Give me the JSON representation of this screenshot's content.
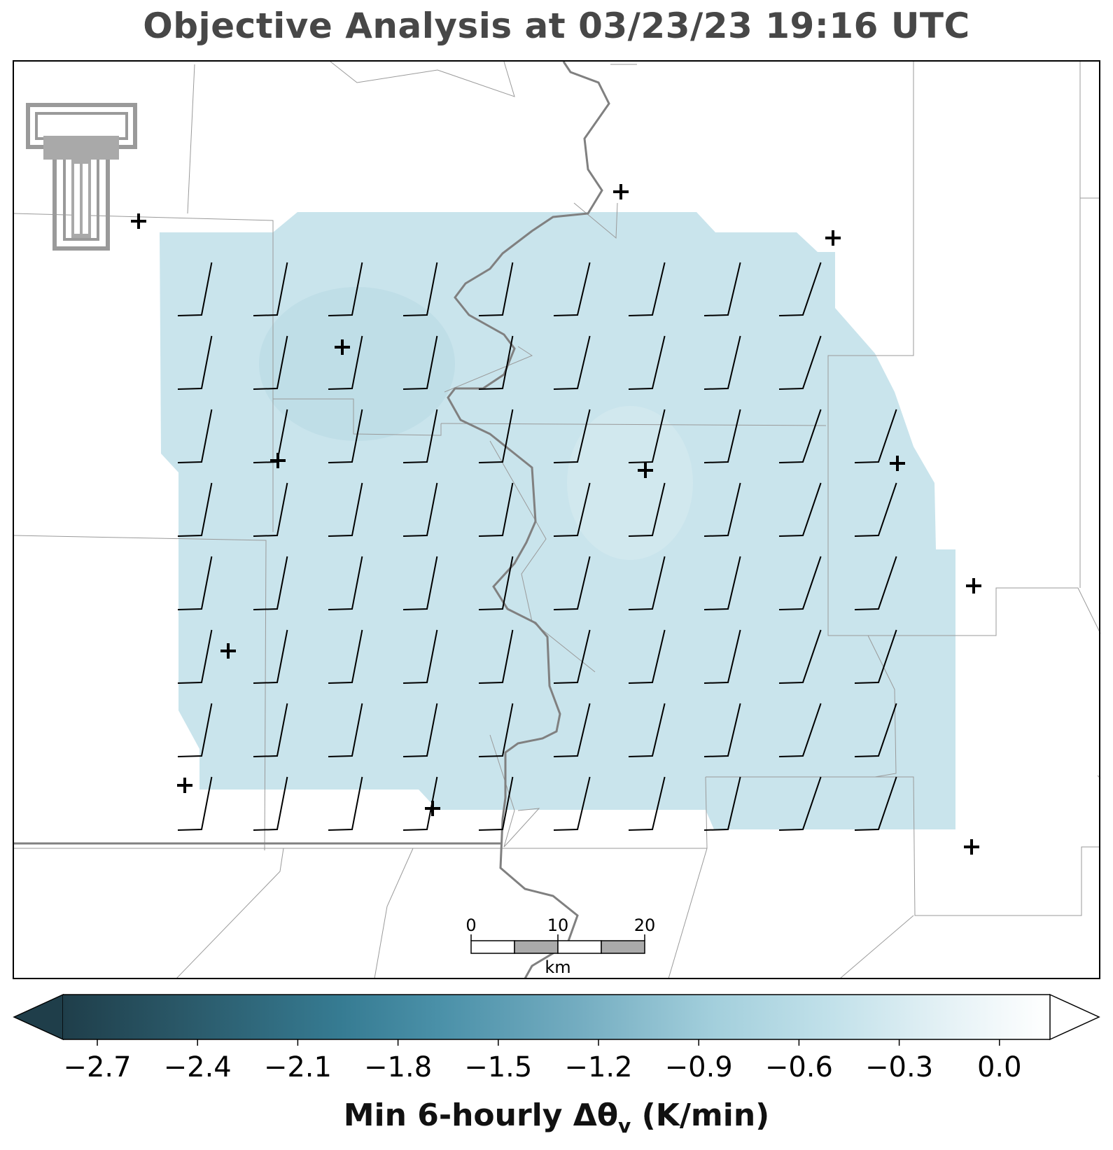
{
  "title": "Objective Analysis at 03/23/23 19:16 UTC",
  "colorbar": {
    "label_main": "Min 6-hourly Δθ",
    "label_sub": "v",
    "label_unit": " (K/min)",
    "ticks": [
      "−2.7",
      "−2.4",
      "−2.1",
      "−1.8",
      "−1.5",
      "−1.2",
      "−0.9",
      "−0.6",
      "−0.3",
      "0.0"
    ],
    "color_dark": "#1f3e4a",
    "color_mid": "#4a90a8",
    "color_light": "#b7dbe5",
    "color_white": "#ffffff"
  },
  "scalebar": {
    "ticks": [
      "0",
      "10",
      "20"
    ],
    "unit": "km"
  },
  "analysis_fill": "#c9e4ec",
  "logo": "texas-tech-double-t-logo",
  "stations": [
    "station-1",
    "station-2",
    "station-3",
    "station-4",
    "station-5",
    "station-6",
    "station-7",
    "station-8",
    "station-9",
    "station-10",
    "station-11",
    "station-12",
    "station-13"
  ]
}
